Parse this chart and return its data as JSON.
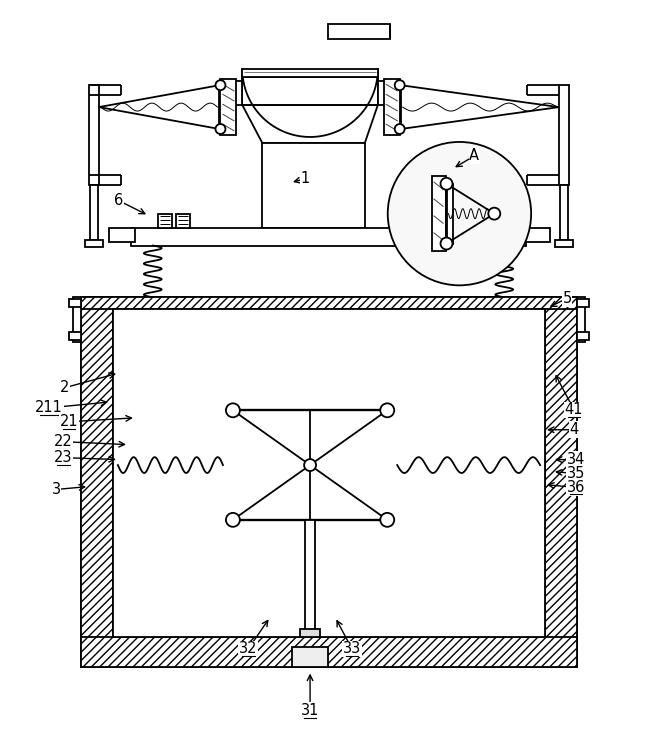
{
  "line_color": "#000000",
  "bg_color": "#ffffff",
  "lw": 1.3,
  "tlw": 0.7,
  "underline_labels": [
    "211",
    "21",
    "22",
    "23",
    "31",
    "32",
    "33",
    "34",
    "35",
    "36",
    "41"
  ],
  "labels": [
    [
      "1",
      305,
      178,
      290,
      182
    ],
    [
      "A",
      475,
      155,
      453,
      168
    ],
    [
      "6",
      118,
      200,
      148,
      215
    ],
    [
      "5",
      568,
      298,
      548,
      308
    ],
    [
      "2",
      63,
      388,
      118,
      373
    ],
    [
      "211",
      48,
      408,
      110,
      402
    ],
    [
      "21",
      68,
      422,
      135,
      418
    ],
    [
      "22",
      62,
      442,
      128,
      445
    ],
    [
      "23",
      62,
      458,
      118,
      460
    ],
    [
      "3",
      55,
      490,
      88,
      487
    ],
    [
      "4",
      575,
      430,
      545,
      430
    ],
    [
      "41",
      575,
      410,
      555,
      372
    ],
    [
      "34",
      577,
      460,
      553,
      460
    ],
    [
      "35",
      577,
      474,
      553,
      472
    ],
    [
      "36",
      577,
      488,
      545,
      485
    ],
    [
      "31",
      310,
      712,
      310,
      672
    ],
    [
      "32",
      248,
      650,
      270,
      618
    ],
    [
      "33",
      352,
      650,
      335,
      618
    ]
  ]
}
